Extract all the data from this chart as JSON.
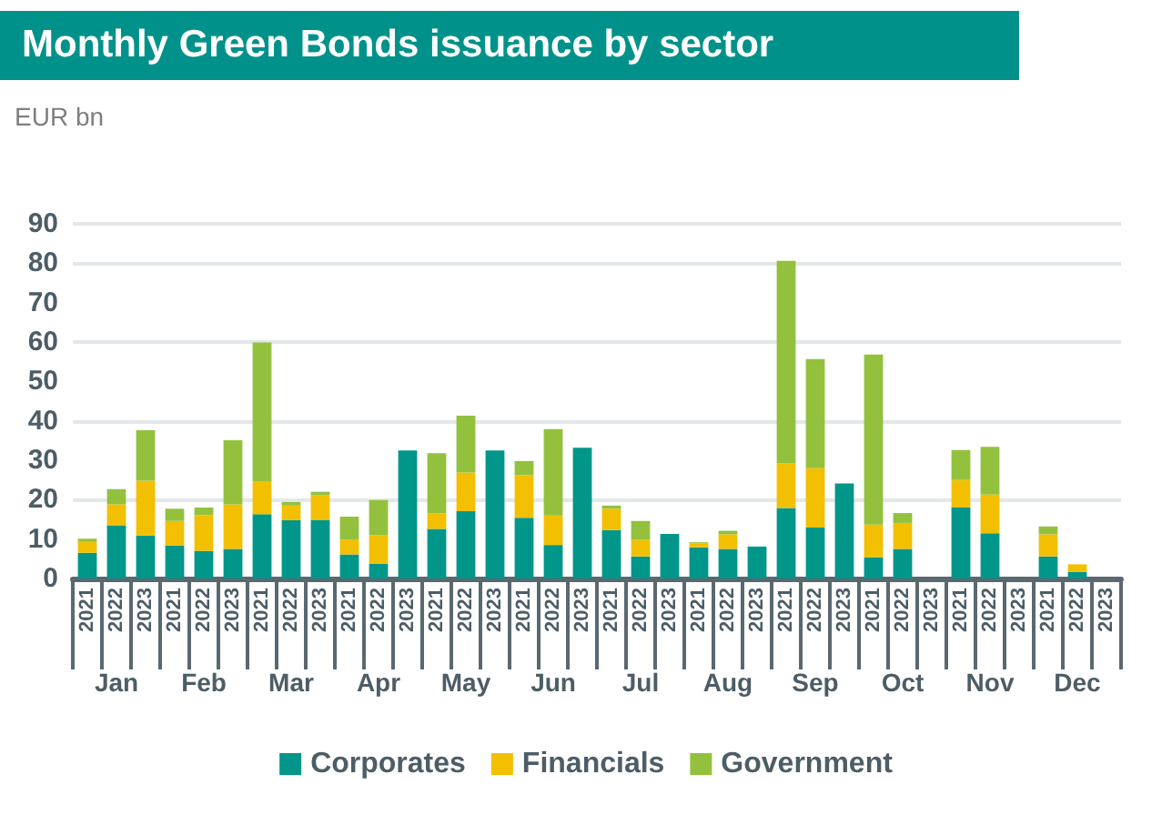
{
  "chart_data": {
    "type": "bar",
    "title": "Monthly Green Bonds issuance by sector",
    "subtitle": "EUR bn",
    "categories": [
      "2021",
      "2022",
      "2023",
      "2021",
      "2022",
      "2023",
      "2021",
      "2022",
      "2023",
      "2021",
      "2022",
      "2023",
      "2021",
      "2022",
      "2023",
      "2021",
      "2022",
      "2023",
      "2021",
      "2022",
      "2023",
      "2021",
      "2022",
      "2023",
      "2021",
      "2022",
      "2023",
      "2021",
      "2022",
      "2023",
      "2021",
      "2022",
      "2023",
      "2021",
      "2022",
      "2023"
    ],
    "annotations": [
      "Jan",
      "Feb",
      "Mar",
      "Apr",
      "May",
      "Jun",
      "Jul",
      "Aug",
      "Sep",
      "Oct",
      "Nov",
      "Dec"
    ],
    "stacked": true,
    "series": [
      {
        "name": "Corporates",
        "color": "#00968a",
        "values": [
          6.5,
          13.5,
          10.9,
          8.4,
          7.0,
          7.5,
          16.3,
          14.8,
          14.9,
          6.1,
          3.7,
          32.5,
          12.6,
          17.1,
          32.5,
          15.4,
          8.5,
          33.2,
          12.3,
          5.6,
          11.3,
          7.9,
          7.5,
          8.1,
          17.9,
          12.9,
          24.1,
          5.4,
          7.5,
          null,
          18.0,
          11.5,
          null,
          5.6,
          1.7,
          null
        ]
      },
      {
        "name": "Financials",
        "color": "#f2c000",
        "values": [
          2.8,
          5.3,
          13.9,
          6.2,
          9.1,
          11.3,
          8.4,
          3.7,
          6.2,
          3.8,
          7.3,
          null,
          3.9,
          9.8,
          null,
          10.8,
          7.5,
          null,
          5.4,
          4.2,
          null,
          1.0,
          3.7,
          null,
          11.3,
          15.1,
          null,
          8.3,
          6.6,
          null,
          7.0,
          9.8,
          null,
          5.6,
          1.9,
          null
        ]
      },
      {
        "name": "Government",
        "color": "#93c13e",
        "values": [
          0.8,
          3.9,
          12.8,
          3.1,
          1.9,
          16.3,
          35.2,
          0.9,
          0.9,
          5.8,
          8.9,
          null,
          15.3,
          14.4,
          null,
          3.6,
          21.9,
          null,
          0.8,
          4.8,
          null,
          0.3,
          0.9,
          null,
          51.4,
          27.7,
          null,
          43.1,
          2.5,
          null,
          7.6,
          12.1,
          null,
          2.0,
          null,
          null
        ]
      }
    ],
    "ylim": [
      0,
      90
    ],
    "yticks": [
      0,
      10,
      20,
      30,
      40,
      50,
      60,
      70,
      80,
      90
    ],
    "grid": "y",
    "legend": "bottom"
  }
}
